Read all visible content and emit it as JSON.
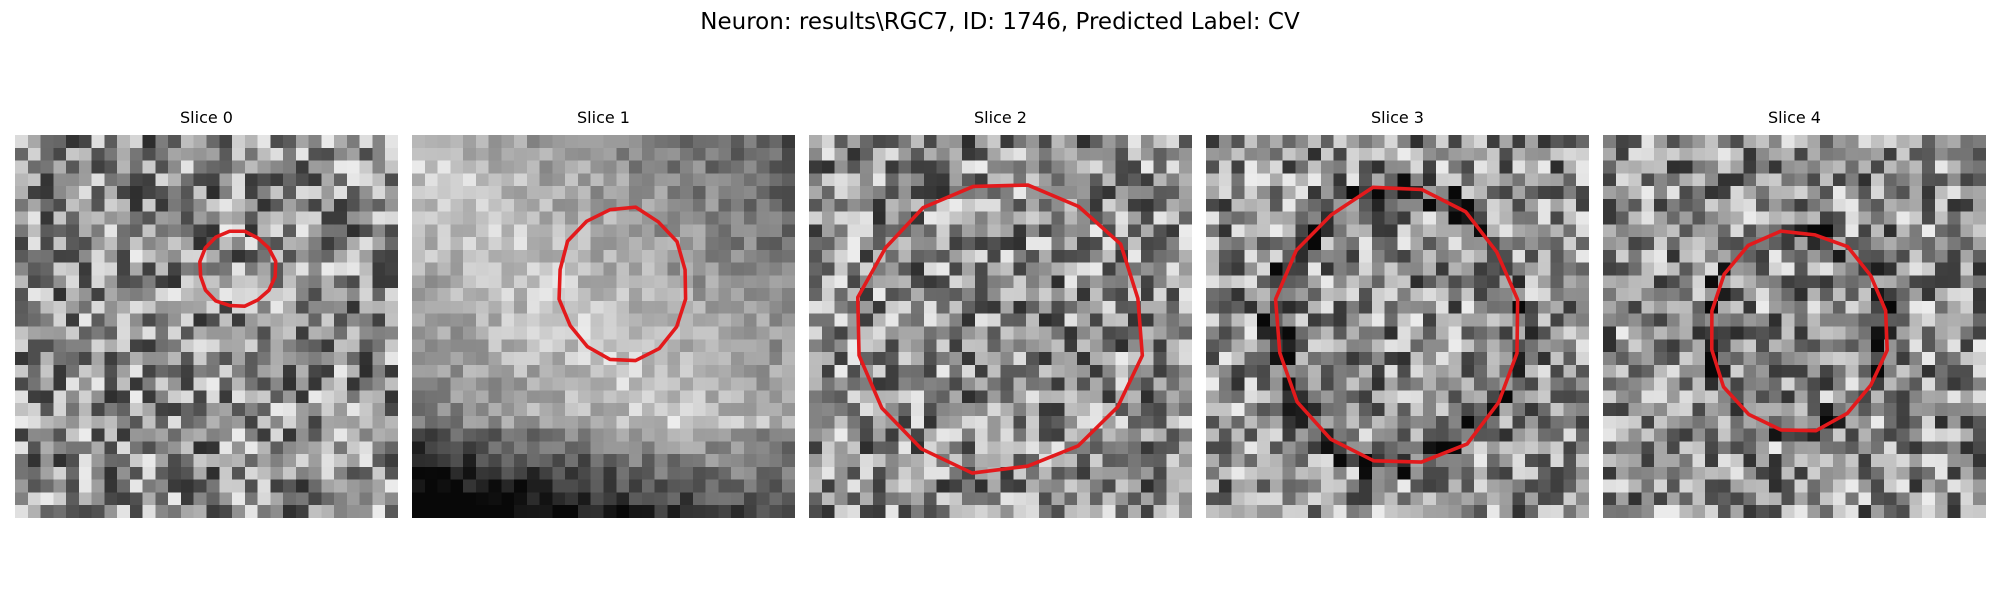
{
  "figure": {
    "title": "Neuron: results\\RGC7, ID: 1746, Predicted Label: CV",
    "contour_color": "#e31a1c",
    "colormap": "gray"
  },
  "slices": [
    {
      "title": "Slice 0",
      "texture": "speckle",
      "contour": {
        "center": [
          0.58,
          0.35
        ],
        "radius": [
          0.1,
          0.1
        ]
      }
    },
    {
      "title": "Slice 1",
      "texture": "smooth_bright_diag",
      "contour": {
        "center": [
          0.55,
          0.39
        ],
        "radius": [
          0.17,
          0.2
        ]
      }
    },
    {
      "title": "Slice 2",
      "texture": "speckle",
      "contour": {
        "center": [
          0.5,
          0.5
        ],
        "radius": [
          0.37,
          0.38
        ]
      }
    },
    {
      "title": "Slice 3",
      "texture": "speckle_dark_ring",
      "contour": {
        "center": [
          0.5,
          0.5
        ],
        "radius": [
          0.32,
          0.36
        ]
      }
    },
    {
      "title": "Slice 4",
      "texture": "speckle_dark_ring",
      "contour": {
        "center": [
          0.51,
          0.51
        ],
        "radius": [
          0.23,
          0.26
        ]
      }
    }
  ]
}
